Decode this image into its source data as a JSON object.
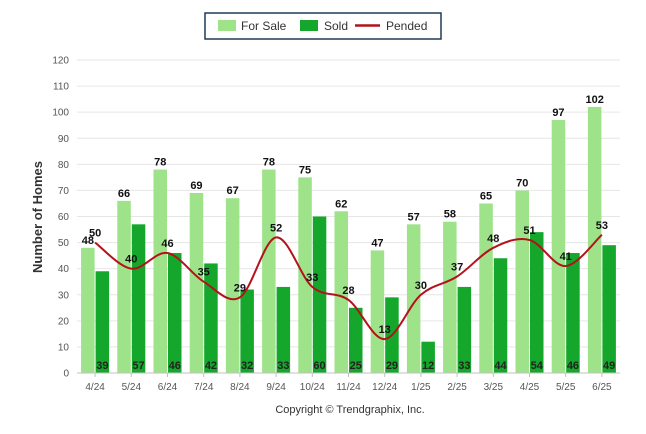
{
  "chart_data": {
    "type": "bar",
    "ylabel": "Number of Homes",
    "xlabel": "",
    "ylim": [
      0,
      120
    ],
    "yticks": [
      0,
      10,
      20,
      30,
      40,
      50,
      60,
      70,
      80,
      90,
      100,
      110,
      120
    ],
    "grid": true,
    "legend_position": "top-center",
    "categories": [
      "4/24",
      "5/24",
      "6/24",
      "7/24",
      "8/24",
      "9/24",
      "10/24",
      "11/24",
      "12/24",
      "1/25",
      "2/25",
      "3/25",
      "4/25",
      "5/25",
      "6/25"
    ],
    "series": [
      {
        "name": "For Sale",
        "kind": "bar",
        "color": "#9ee28a",
        "values": [
          48,
          66,
          78,
          69,
          67,
          78,
          75,
          62,
          47,
          57,
          58,
          65,
          70,
          97,
          102
        ]
      },
      {
        "name": "Sold",
        "kind": "bar",
        "color": "#14a72b",
        "values": [
          39,
          57,
          46,
          42,
          32,
          33,
          60,
          25,
          29,
          12,
          33,
          44,
          54,
          46,
          49
        ]
      },
      {
        "name": "Pended",
        "kind": "line",
        "color": "#b3121b",
        "values": [
          50,
          40,
          46,
          35,
          29,
          52,
          33,
          28,
          13,
          30,
          37,
          48,
          51,
          41,
          53
        ]
      }
    ]
  },
  "footer": {
    "credit": "Copyright © Trendgraphix, Inc."
  }
}
